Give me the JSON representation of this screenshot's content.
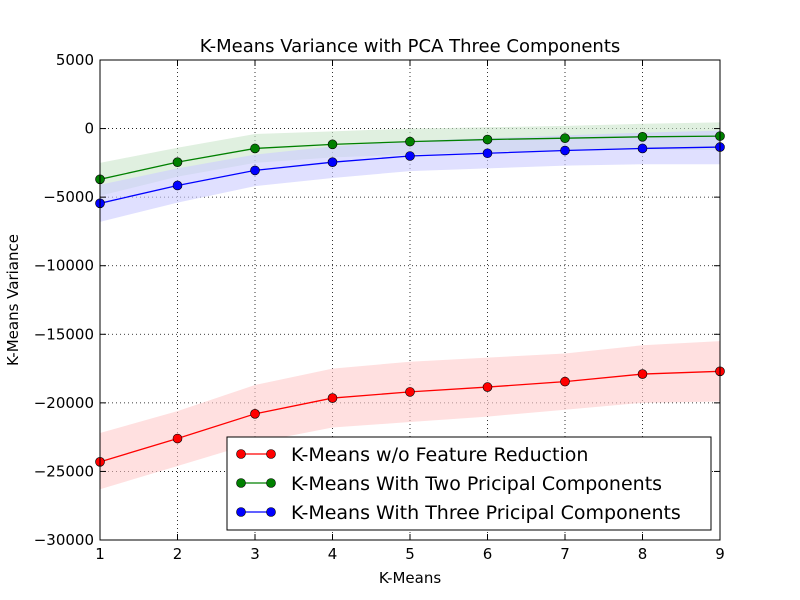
{
  "chart_data": {
    "type": "line",
    "title": "K-Means Variance with PCA Three Components",
    "xlabel": "K-Means",
    "ylabel": "K-Means Variance",
    "xlim": [
      1,
      9
    ],
    "ylim": [
      -30000,
      5000
    ],
    "xticks": [
      "1",
      "2",
      "3",
      "4",
      "5",
      "6",
      "7",
      "8",
      "9"
    ],
    "yticks": [
      "5000",
      "0",
      "−5000",
      "−10000",
      "−15000",
      "−20000",
      "−25000",
      "−30000"
    ],
    "xtick_values": [
      1,
      2,
      3,
      4,
      5,
      6,
      7,
      8,
      9
    ],
    "ytick_values": [
      5000,
      0,
      -5000,
      -10000,
      -15000,
      -20000,
      -25000,
      -30000
    ],
    "grid": true,
    "legend_position": "lower-right",
    "x": [
      1,
      2,
      3,
      4,
      5,
      6,
      7,
      8,
      9
    ],
    "series": [
      {
        "name": "K-Means w/o Feature Reduction",
        "color": "#ff0000",
        "band_color": "#ffcccc",
        "values": [
          -24300,
          -22600,
          -20800,
          -19650,
          -19200,
          -18850,
          -18450,
          -17900,
          -17700
        ],
        "band_upper": [
          -22200,
          -20600,
          -18700,
          -17500,
          -17000,
          -16700,
          -16400,
          -15800,
          -15500
        ],
        "band_lower": [
          -26300,
          -24600,
          -22900,
          -21800,
          -21400,
          -21000,
          -20500,
          -20000,
          -19900
        ]
      },
      {
        "name": "K-Means With Two Pricipal Components",
        "color": "#008000",
        "band_color": "#cce6cc",
        "values": [
          -3700,
          -2450,
          -1450,
          -1150,
          -950,
          -800,
          -700,
          -600,
          -550
        ],
        "band_upper": [
          -2500,
          -1400,
          -400,
          -200,
          0,
          100,
          200,
          350,
          450
        ],
        "band_lower": [
          -4900,
          -3500,
          -2500,
          -2100,
          -1900,
          -1700,
          -1600,
          -1550,
          -1550
        ]
      },
      {
        "name": "K-Means With Three Pricipal Components",
        "color": "#0000ff",
        "band_color": "#ccccff",
        "values": [
          -5450,
          -4150,
          -3050,
          -2450,
          -2000,
          -1800,
          -1600,
          -1450,
          -1350
        ],
        "band_upper": [
          -4100,
          -2900,
          -1900,
          -1300,
          -900,
          -700,
          -500,
          -300,
          -150
        ],
        "band_lower": [
          -6800,
          -5400,
          -4200,
          -3600,
          -3100,
          -2900,
          -2700,
          -2600,
          -2600
        ]
      }
    ]
  }
}
